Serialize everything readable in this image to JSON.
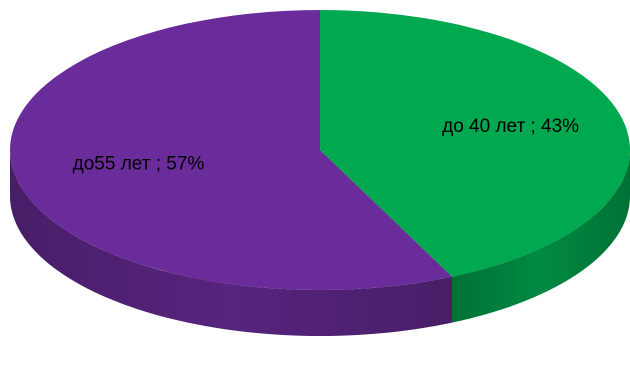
{
  "chart_data": {
    "type": "pie",
    "categories": [
      "до 40 лет",
      "до55 лет"
    ],
    "values": [
      43,
      57
    ],
    "unit": "%",
    "data_labels": [
      "до 40 лет ; 43%",
      "до55 лет ; 57%"
    ],
    "colors": [
      "#00a84f",
      "#6a2c9a"
    ],
    "style": "3d",
    "legend": "none"
  }
}
